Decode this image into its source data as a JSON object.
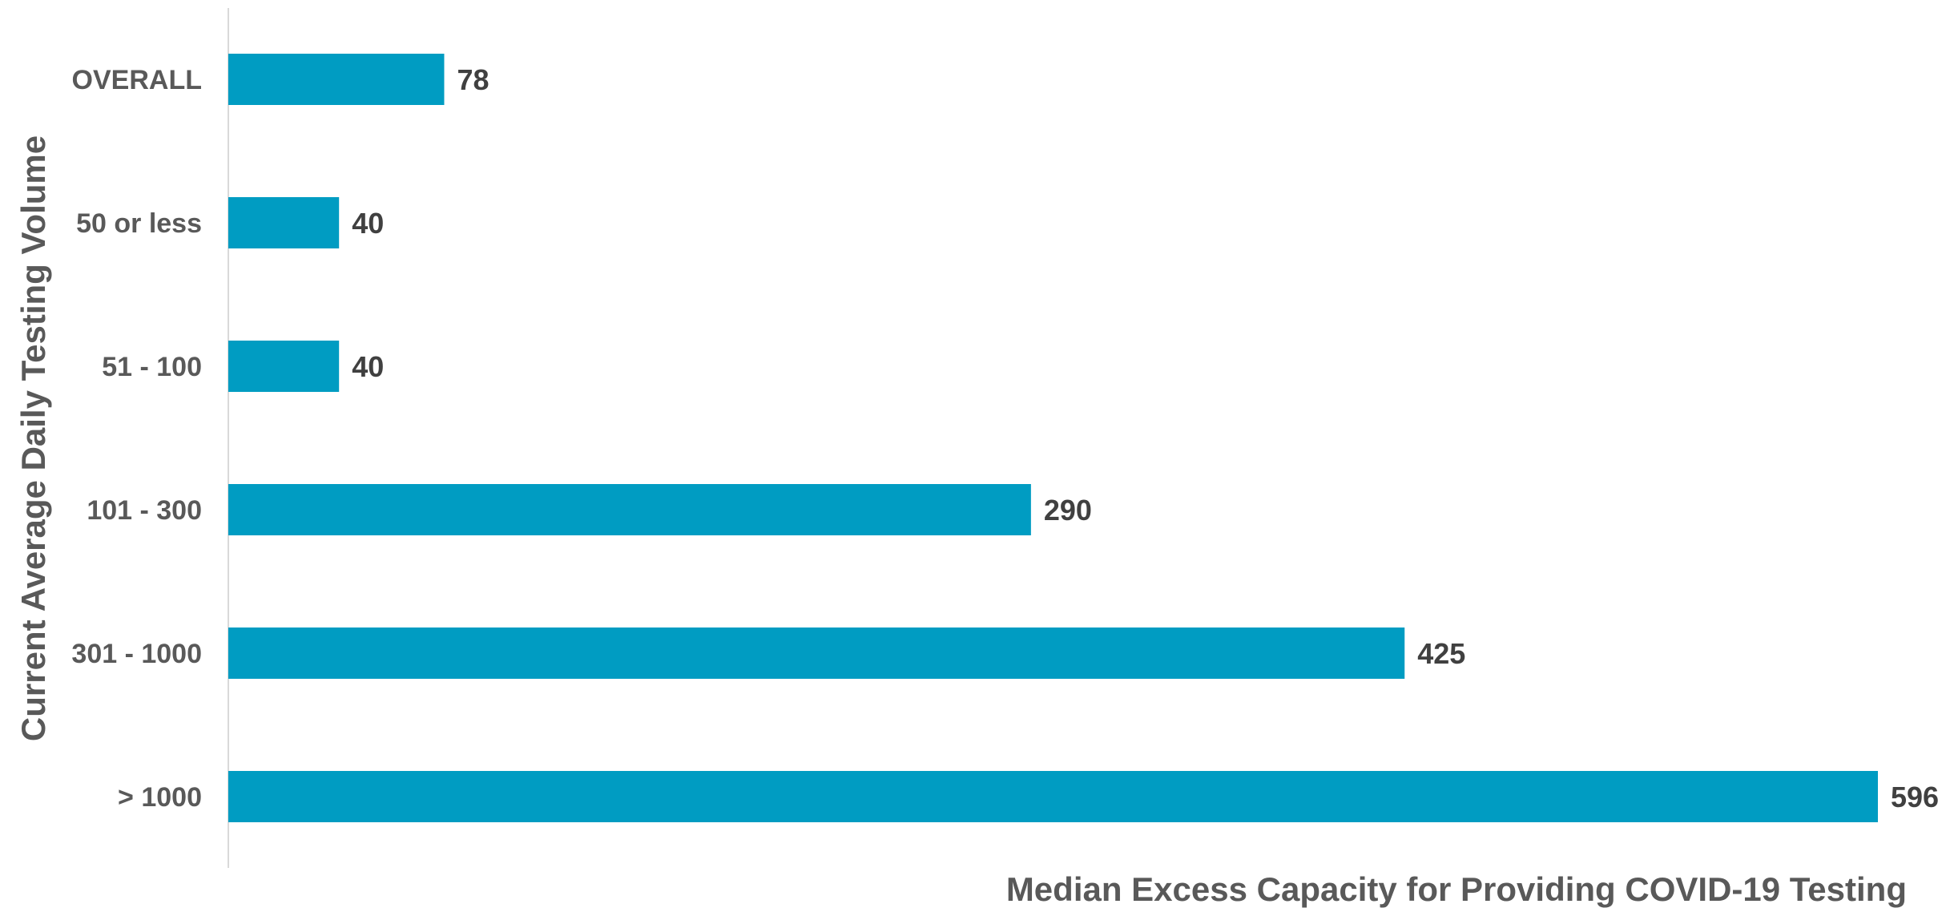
{
  "chart_data": {
    "type": "bar",
    "orientation": "horizontal",
    "title": "",
    "xlabel": "Median Excess Capacity for Providing COVID-19 Testing",
    "ylabel": "Current Average Daily Testing Volume",
    "categories": [
      "OVERALL",
      "50 or less",
      "51 - 100",
      "101 - 300",
      "301 - 1000",
      "> 1000"
    ],
    "values": [
      78,
      40,
      40,
      290,
      425,
      596
    ],
    "data_labels": [
      "78",
      "40",
      "40",
      "290",
      "425",
      "596"
    ],
    "xlim": [
      0,
      596
    ],
    "grid": false,
    "legend": "none",
    "colors": {
      "bar": "#009cc2",
      "axis_line": "#d9d9d9"
    }
  }
}
